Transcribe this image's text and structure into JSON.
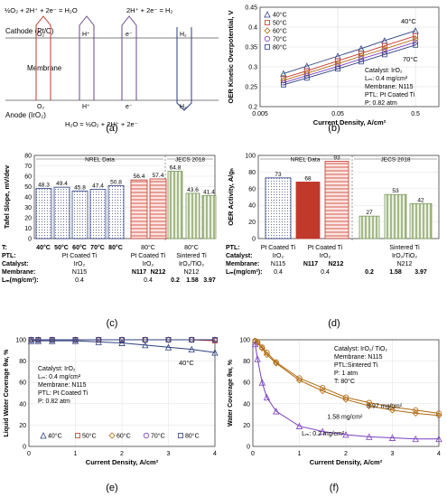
{
  "panel_labels": [
    "(a)",
    "(b)",
    "(c)",
    "(d)",
    "(e)",
    "(f)"
  ],
  "colors": {
    "blue": "#2e3f7f",
    "red": "#c0392b",
    "green": "#7a9a5a",
    "orange": "#b06a10",
    "purple": "#7a3fbf",
    "grey": "#555555"
  },
  "diagram": {
    "eq_top_left": "½O₂ + 2H⁺ + 2e⁻ = H₂O",
    "eq_top_right": "2H⁺ + 2e⁻ = H₂",
    "cathode_label": "Cathode (Pt/C)",
    "membrane_label": "Membrane",
    "anode_label": "Anode (IrO₂)",
    "o2_top": "O₂",
    "hplus_top": "H⁺",
    "eminus_top": "e⁻",
    "h2_top": "H₂",
    "o2_bottom": "O₂",
    "hplus_bottom": "H⁺",
    "eminus_bottom": "e⁻",
    "h2_bottom": "H₂",
    "eq_bottom": "H₂O = ½O₂ + 2H⁺ + 2e⁻"
  },
  "chart_data": [
    {
      "id": "b",
      "type": "line",
      "xscale": "log",
      "xlabel": "Current Density, A/cm²",
      "ylabel": "OER Kinetic Overpotential, V",
      "xlim": [
        0.005,
        1.0
      ],
      "ylim": [
        0.2,
        0.45
      ],
      "xticks": [
        "0.005",
        "0.05",
        "0.5"
      ],
      "yticks": [
        "0.2",
        "0.25",
        "0.3",
        "0.35",
        "0.4",
        "0.45"
      ],
      "series": [
        {
          "name": "40°C",
          "marker": "triangle",
          "x": [
            0.01,
            0.02,
            0.05,
            0.1,
            0.2,
            0.5
          ],
          "y": [
            0.283,
            0.302,
            0.327,
            0.346,
            0.366,
            0.391
          ]
        },
        {
          "name": "50°C",
          "marker": "square",
          "x": [
            0.01,
            0.02,
            0.05,
            0.1,
            0.2,
            0.5
          ],
          "y": [
            0.272,
            0.29,
            0.315,
            0.334,
            0.353,
            0.378
          ]
        },
        {
          "name": "60°C",
          "marker": "diamond",
          "x": [
            0.01,
            0.02,
            0.05,
            0.1,
            0.2,
            0.5
          ],
          "y": [
            0.266,
            0.284,
            0.308,
            0.327,
            0.345,
            0.37
          ]
        },
        {
          "name": "70°C",
          "marker": "circle",
          "x": [
            0.01,
            0.02,
            0.05,
            0.1,
            0.2,
            0.5
          ],
          "y": [
            0.26,
            0.278,
            0.301,
            0.32,
            0.338,
            0.362
          ]
        },
        {
          "name": "80°C",
          "marker": "square",
          "x": [
            0.01,
            0.02,
            0.05,
            0.1,
            0.2,
            0.5
          ],
          "y": [
            0.255,
            0.272,
            0.295,
            0.313,
            0.331,
            0.355
          ]
        }
      ],
      "annotations": [
        "40°C",
        "70°C",
        "Catalyst:  IrO₂",
        "Lₘ:  0.4 mg/cm²",
        "Membrane: N115",
        "PTL: Pt Coated Ti",
        "P: 0.82 atm"
      ]
    },
    {
      "id": "c",
      "type": "bar",
      "ylabel": "Tafel Slope, mV/dev",
      "ylim": [
        0,
        80
      ],
      "yticks": [
        "0",
        "10",
        "20",
        "30",
        "40",
        "50",
        "60",
        "70",
        "80"
      ],
      "values": [
        48.3,
        49.4,
        45.8,
        47.4,
        50.8,
        56.4,
        57.4,
        64.8,
        43.6,
        41.4
      ],
      "groups": [
        "NREL Data",
        "JECS 2018"
      ],
      "rows": {
        "t_label": "T:",
        "t_values": [
          "40°C",
          "50°C",
          "60°C",
          "70°C",
          "80°C",
          "80°C",
          "80°C"
        ],
        "ptl_label": "PTL:",
        "ptl_values": [
          "Pt Coated Ti",
          "Pt Coated Ti",
          "Sintered Ti"
        ],
        "cat_label": "Catalyst:",
        "cat_values": [
          "IrO₂",
          "IrO₂",
          "IrO₂/TiO₂"
        ],
        "mem_label": "Membrane:",
        "mem_values": [
          "N115",
          "N117",
          "N212",
          "N212"
        ],
        "lm_label": "Lₘ(mg/cm²):",
        "lm_values": [
          "0.4",
          "0.4",
          "0.2",
          "1.58",
          "3.97"
        ]
      }
    },
    {
      "id": "d",
      "type": "bar",
      "ylabel": "OER Activity, A/gₙ",
      "ylim": [
        0,
        100
      ],
      "yticks": [
        "0",
        "20",
        "40",
        "60",
        "80",
        "100"
      ],
      "values": [
        73,
        68,
        93,
        27,
        53,
        42
      ],
      "groups": [
        "NREL Data",
        "JECS 2018"
      ],
      "rows": {
        "ptl_label": "PTL:",
        "ptl_values": [
          "Pt Coated Ti",
          "Pt Coated Ti",
          "Sintered Ti"
        ],
        "cat_label": "Catalyst:",
        "cat_values": [
          "IrO₂",
          "IrO₂",
          "IrO₂/TiO₂"
        ],
        "mem_label": "Membrane:",
        "mem_values": [
          "N115",
          "N117",
          "N212",
          "N212"
        ],
        "lm_label": "Lₘ(mg/cm²):",
        "lm_values": [
          "0.4",
          "0.4",
          "0.2",
          "1.58",
          "3.97"
        ]
      }
    },
    {
      "id": "e",
      "type": "scatter",
      "xlabel": "Current Density, A/cm²",
      "ylabel": "Liquid Water Coverage θw, %",
      "xlim": [
        0,
        4
      ],
      "ylim": [
        0,
        100
      ],
      "xticks": [
        "0",
        "1",
        "2",
        "3",
        "4"
      ],
      "yticks": [
        "0",
        "20",
        "40",
        "60",
        "80",
        "100"
      ],
      "series": [
        {
          "name": "40°C",
          "marker": "triangle",
          "x": [
            0.05,
            0.2,
            0.5,
            1,
            1.5,
            2,
            2.5,
            3,
            3.5,
            4
          ],
          "y": [
            99,
            99,
            99,
            99,
            98,
            97,
            95,
            93,
            91,
            88
          ]
        },
        {
          "name": "50°C",
          "marker": "square",
          "x": [
            0.05,
            0.2,
            0.5,
            1,
            1.5,
            2,
            2.5,
            3,
            3.5,
            4
          ],
          "y": [
            100,
            100,
            100,
            100,
            100,
            100,
            100,
            100,
            100,
            99
          ]
        },
        {
          "name": "60°C",
          "marker": "diamond",
          "x": [
            0.05,
            0.2,
            0.5,
            1,
            1.5,
            2,
            2.5,
            3,
            3.5,
            4
          ],
          "y": [
            100,
            100,
            100,
            100,
            100,
            100,
            100,
            100,
            100,
            100
          ]
        },
        {
          "name": "70°C",
          "marker": "circle",
          "x": [
            0.05,
            0.2,
            0.5,
            1,
            1.5,
            2,
            2.5,
            3,
            3.5,
            4
          ],
          "y": [
            100,
            100,
            100,
            100,
            100,
            100,
            100,
            100,
            100,
            100
          ]
        },
        {
          "name": "80°C",
          "marker": "square",
          "x": [
            0.05,
            0.2,
            0.5,
            1,
            1.5,
            2,
            2.5,
            3,
            3.5,
            4
          ],
          "y": [
            100,
            100,
            100,
            100,
            100,
            100,
            100,
            100,
            100,
            100
          ]
        }
      ],
      "annotations": [
        "40°C",
        "Catalyst:  IrO₂",
        "Lₘ:  0.4 mg/cm²",
        "Membrane: N115",
        "PTL: Pt Coated Ti",
        "P: 0.82 atm"
      ]
    },
    {
      "id": "f",
      "type": "scatter",
      "xlabel": "Current Density, A/cm²",
      "ylabel": "Water Coverage θw, %",
      "xlim": [
        0,
        4
      ],
      "ylim": [
        0,
        100
      ],
      "xticks": [
        "0",
        "1",
        "2",
        "3",
        "4"
      ],
      "yticks": [
        "0",
        "20",
        "40",
        "60",
        "80",
        "100"
      ],
      "series": [
        {
          "name": "3.97 mg/cm²",
          "marker": "circle",
          "x": [
            0.05,
            0.1,
            0.2,
            0.3,
            0.5,
            1,
            1.5,
            2,
            2.5,
            3,
            3.5,
            4
          ],
          "y": [
            99,
            98,
            93,
            88,
            79,
            64,
            55,
            46,
            41,
            37,
            34,
            31
          ]
        },
        {
          "name": "1.58 mg/cm²",
          "marker": "diamond",
          "x": [
            0.05,
            0.1,
            0.2,
            0.3,
            0.5,
            1,
            1.5,
            2,
            2.5,
            3,
            3.5,
            4
          ],
          "y": [
            99,
            97,
            92,
            86,
            78,
            62,
            52,
            44,
            38,
            34,
            31,
            29
          ]
        },
        {
          "name": "Lₘ: 0.2 mg/cm²",
          "marker": "triangle",
          "x": [
            0.05,
            0.1,
            0.2,
            0.3,
            0.5,
            1,
            1.5,
            2,
            2.5,
            3,
            3.5,
            4
          ],
          "y": [
            96,
            82,
            60,
            46,
            33,
            19,
            14,
            11,
            9,
            8,
            7,
            7
          ]
        }
      ],
      "annotations": [
        "Catalyst: IrO₂/ TiO₂",
        "Membrane: N115",
        "PTL:Sintered Ti",
        "P: 1 atm",
        "T: 80°C"
      ]
    }
  ]
}
